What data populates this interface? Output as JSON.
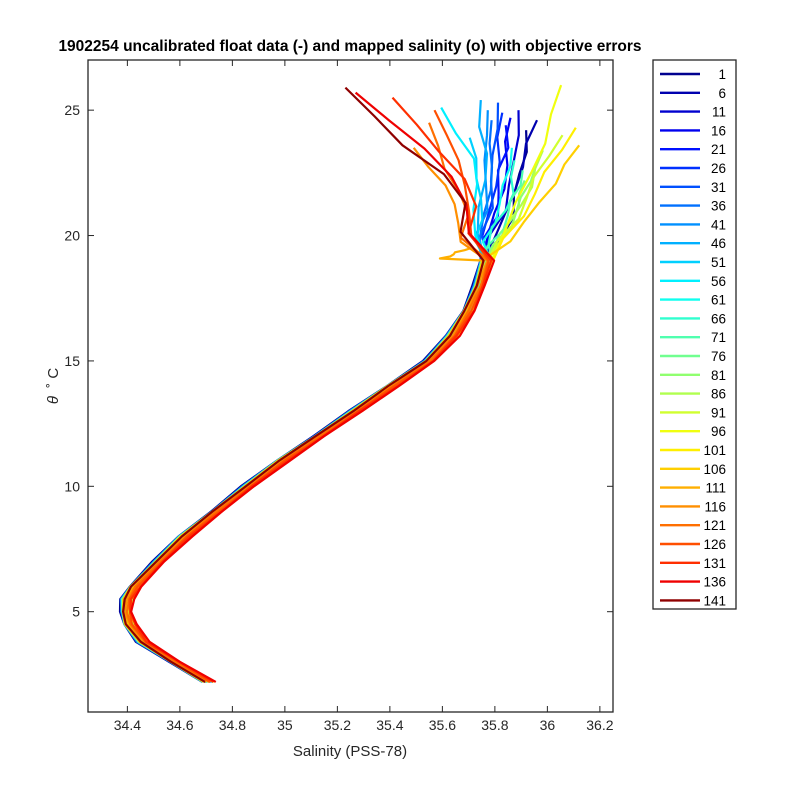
{
  "chart_data": {
    "type": "line",
    "title": "1902254 uncalibrated float data (-) and mapped salinity (o) with objective errors",
    "xlabel": "Salinity (PSS-78)",
    "ylabel_symbol": "θ",
    "ylabel_unit": "˚ C",
    "xlim": [
      34.25,
      36.25
    ],
    "ylim": [
      1,
      27
    ],
    "xticks": [
      "34.4",
      "34.6",
      "34.8",
      "35",
      "35.2",
      "35.4",
      "35.6",
      "35.8",
      "36",
      "36.2"
    ],
    "xtick_values": [
      34.4,
      34.6,
      34.8,
      35.0,
      35.2,
      35.4,
      35.6,
      35.8,
      36.0,
      36.2
    ],
    "yticks": [
      "5",
      "10",
      "15",
      "20",
      "25"
    ],
    "ytick_values": [
      5,
      10,
      15,
      20,
      25
    ],
    "grid": false,
    "legend_position": "outside-right",
    "colormap": "jet",
    "profile_shape": {
      "theta": [
        2.2,
        3.0,
        3.8,
        4.5,
        5.0,
        5.5,
        6.0,
        7.0,
        8.0,
        9.0,
        10.0,
        11.0,
        12.0,
        13.0,
        14.0,
        15.0,
        16.0,
        17.0,
        18.0,
        19.0
      ],
      "salinity": [
        34.71,
        34.58,
        34.46,
        34.41,
        34.395,
        34.4,
        34.43,
        34.52,
        34.62,
        34.74,
        34.86,
        34.99,
        35.13,
        35.27,
        35.41,
        35.55,
        35.64,
        35.7,
        35.74,
        35.77
      ]
    },
    "series": [
      {
        "name": "1",
        "color": "#00008f",
        "upper_salinity": [
          35.82,
          35.86,
          35.88,
          35.9,
          35.91,
          35.92
        ],
        "top_theta": 24.2
      },
      {
        "name": "6",
        "color": "#0000af",
        "upper_salinity": [
          35.8,
          35.85,
          35.87,
          35.9,
          35.93,
          35.96
        ],
        "top_theta": 24.6
      },
      {
        "name": "11",
        "color": "#0000cf",
        "upper_salinity": [
          35.78,
          35.83,
          35.86,
          35.88,
          35.88,
          35.89
        ],
        "top_theta": 25.0
      },
      {
        "name": "16",
        "color": "#0000ef",
        "upper_salinity": [
          35.77,
          35.81,
          35.83,
          35.84,
          35.85,
          35.86
        ],
        "top_theta": 24.7
      },
      {
        "name": "21",
        "color": "#0010ff",
        "upper_salinity": [
          35.76,
          35.8,
          35.82,
          35.82,
          35.84,
          35.84
        ],
        "top_theta": 24.4
      },
      {
        "name": "26",
        "color": "#0030ff",
        "upper_salinity": [
          35.75,
          35.79,
          35.8,
          35.81,
          35.82,
          35.83
        ],
        "top_theta": 24.9
      },
      {
        "name": "31",
        "color": "#0050ff",
        "upper_salinity": [
          35.75,
          35.78,
          35.79,
          35.8,
          35.8,
          35.81
        ],
        "top_theta": 25.3
      },
      {
        "name": "36",
        "color": "#0070ff",
        "upper_salinity": [
          35.74,
          35.77,
          35.78,
          35.78,
          35.79,
          35.79
        ],
        "top_theta": 24.6
      },
      {
        "name": "41",
        "color": "#0090ff",
        "upper_salinity": [
          35.73,
          35.76,
          35.77,
          35.77,
          35.76,
          35.77
        ],
        "top_theta": 25.0
      },
      {
        "name": "46",
        "color": "#00b0ff",
        "upper_salinity": [
          35.73,
          35.75,
          35.76,
          35.76,
          35.75,
          35.75
        ],
        "top_theta": 25.4
      },
      {
        "name": "51",
        "color": "#00d0ff",
        "upper_salinity": [
          35.73,
          35.74,
          35.75,
          35.74,
          35.72,
          35.7
        ],
        "top_theta": 23.9
      },
      {
        "name": "56",
        "color": "#00f0ff",
        "upper_salinity": [
          35.72,
          35.73,
          35.73,
          35.71,
          35.66,
          35.6
        ],
        "top_theta": 25.1
      },
      {
        "name": "61",
        "color": "#10ffef",
        "upper_salinity": [
          35.76,
          35.79,
          35.82,
          35.84,
          35.85,
          35.86
        ],
        "top_theta": 23.5
      },
      {
        "name": "66",
        "color": "#30ffcf",
        "upper_salinity": [
          35.77,
          35.8,
          35.84,
          35.86,
          35.87,
          35.88
        ],
        "top_theta": 23.0
      },
      {
        "name": "71",
        "color": "#50ffaf",
        "upper_salinity": [
          35.78,
          35.82,
          35.85,
          35.87,
          35.89,
          35.9
        ],
        "top_theta": 22.6
      },
      {
        "name": "76",
        "color": "#70ff8f",
        "upper_salinity": [
          35.79,
          35.83,
          35.86,
          35.88,
          35.9,
          35.92
        ],
        "top_theta": 22.2
      },
      {
        "name": "81",
        "color": "#90ff6f",
        "upper_salinity": [
          35.8,
          35.85,
          35.88,
          35.91,
          35.93,
          35.95
        ],
        "top_theta": 22.8
      },
      {
        "name": "86",
        "color": "#b0ff4f",
        "upper_salinity": [
          35.81,
          35.86,
          35.9,
          35.93,
          35.96,
          35.99
        ],
        "top_theta": 23.4
      },
      {
        "name": "91",
        "color": "#d0ff2f",
        "upper_salinity": [
          35.82,
          35.88,
          35.92,
          35.96,
          36.0,
          36.05
        ],
        "top_theta": 24.0
      },
      {
        "name": "96",
        "color": "#f0ff0f",
        "upper_salinity": [
          35.83,
          35.89,
          35.94,
          35.98,
          36.02,
          36.06
        ],
        "top_theta": 26.0
      },
      {
        "name": "101",
        "color": "#ffef00",
        "upper_salinity": [
          35.84,
          35.9,
          35.95,
          36.0,
          36.05,
          36.1
        ],
        "top_theta": 24.3
      },
      {
        "name": "106",
        "color": "#ffcf00",
        "upper_salinity": [
          35.85,
          35.92,
          35.97,
          36.02,
          36.07,
          36.13
        ],
        "top_theta": 23.6
      },
      {
        "name": "111",
        "color": "#ffaf00",
        "upper_salinity": [
          35.6,
          35.62,
          35.64,
          35.66,
          35.68,
          35.7
        ],
        "top_theta": 19.5
      },
      {
        "name": "116",
        "color": "#ff8f00",
        "upper_salinity": [
          35.66,
          35.67,
          35.65,
          35.6,
          35.55,
          35.5
        ],
        "top_theta": 23.5
      },
      {
        "name": "121",
        "color": "#ff6f00",
        "upper_salinity": [
          35.68,
          35.69,
          35.66,
          35.62,
          35.58,
          35.54
        ],
        "top_theta": 24.5
      },
      {
        "name": "126",
        "color": "#ff4f00",
        "upper_salinity": [
          35.7,
          35.71,
          35.69,
          35.65,
          35.62,
          35.58
        ],
        "top_theta": 25.0
      },
      {
        "name": "131",
        "color": "#ff2f00",
        "upper_salinity": [
          35.71,
          35.72,
          35.68,
          35.6,
          35.5,
          35.4
        ],
        "top_theta": 25.5
      },
      {
        "name": "136",
        "color": "#ef0000",
        "upper_salinity": [
          35.69,
          35.7,
          35.64,
          35.52,
          35.4,
          35.28
        ],
        "top_theta": 25.7
      },
      {
        "name": "141",
        "color": "#8f0000",
        "upper_salinity": [
          35.68,
          35.68,
          35.6,
          35.46,
          35.34,
          35.22
        ],
        "top_theta": 25.9
      }
    ]
  }
}
